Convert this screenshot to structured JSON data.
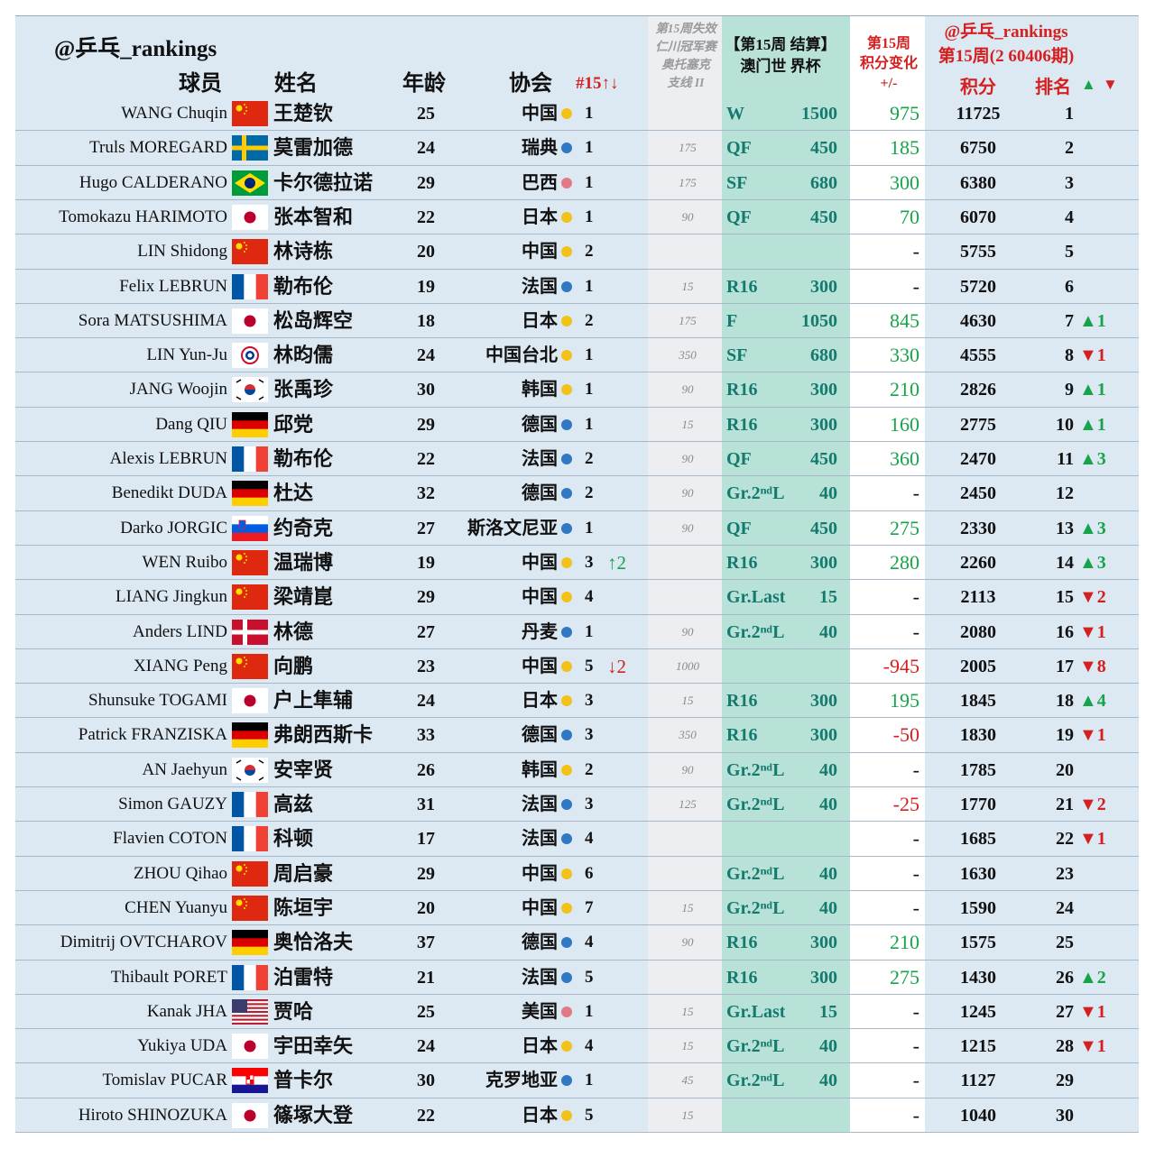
{
  "header": {
    "handle": "@乒乓_rankings",
    "col_player": "球员",
    "col_name": "姓名",
    "col_age": "年龄",
    "col_assoc": "协会",
    "col_rank15": "#15↑↓",
    "col_lost": "第15周失效\n仁川冠军赛\n奥托塞克\n支线 II",
    "col_event": "【第15周 结算】\n澳门世 界杯",
    "col_change": "第15周\n积分变化\n+/-",
    "col_period": "@乒乓_rankings\n第15周(2 60406期)",
    "col_points": "积分",
    "col_rank": "排名",
    "up": "▲",
    "down": "▼"
  },
  "table": {
    "rows": [
      {
        "name": "WANG Chuqin",
        "cn": "王楚钦",
        "age": 25,
        "assoc": "中国",
        "rank15": 1,
        "move": null,
        "lost": null,
        "stage": "W",
        "stage_pts": 1500,
        "change": 975,
        "points": 11725,
        "rank": 1,
        "rank_move": null
      },
      {
        "name": "Truls MOREGARD",
        "cn": "莫雷加德",
        "age": 24,
        "assoc": "瑞典",
        "rank15": 1,
        "move": null,
        "lost": 175,
        "stage": "QF",
        "stage_pts": 450,
        "change": 185,
        "points": 6750,
        "rank": 2,
        "rank_move": null
      },
      {
        "name": "Hugo CALDERANO",
        "cn": "卡尔德拉诺",
        "age": 29,
        "assoc": "巴西",
        "rank15": 1,
        "move": null,
        "lost": 175,
        "stage": "SF",
        "stage_pts": 680,
        "change": 300,
        "points": 6380,
        "rank": 3,
        "rank_move": null
      },
      {
        "name": "Tomokazu HARIMOTO",
        "cn": "张本智和",
        "age": 22,
        "assoc": "日本",
        "rank15": 1,
        "move": null,
        "lost": 90,
        "stage": "QF",
        "stage_pts": 450,
        "change": 70,
        "points": 6070,
        "rank": 4,
        "rank_move": null
      },
      {
        "name": "LIN Shidong",
        "cn": "林诗栋",
        "age": 20,
        "assoc": "中国",
        "rank15": 2,
        "move": null,
        "lost": null,
        "stage": null,
        "stage_pts": null,
        "change": "-",
        "points": 5755,
        "rank": 5,
        "rank_move": null
      },
      {
        "name": "Felix LEBRUN",
        "cn": "勒布伦",
        "age": 19,
        "assoc": "法国",
        "rank15": 1,
        "move": null,
        "lost": 15,
        "stage": "R16",
        "stage_pts": 300,
        "change": "-",
        "points": 5720,
        "rank": 6,
        "rank_move": null
      },
      {
        "name": "Sora MATSUSHIMA",
        "cn": "松岛辉空",
        "age": 18,
        "assoc": "日本",
        "rank15": 2,
        "move": null,
        "lost": 175,
        "stage": "F",
        "stage_pts": 1050,
        "change": 845,
        "points": 4630,
        "rank": 7,
        "rank_move": "▲1"
      },
      {
        "name": "LIN Yun-Ju",
        "cn": "林昀儒",
        "age": 24,
        "assoc": "中国台北",
        "rank15": 1,
        "move": null,
        "lost": 350,
        "stage": "SF",
        "stage_pts": 680,
        "change": 330,
        "points": 4555,
        "rank": 8,
        "rank_move": "▼1"
      },
      {
        "name": "JANG Woojin",
        "cn": "张禹珍",
        "age": 30,
        "assoc": "韩国",
        "rank15": 1,
        "move": null,
        "lost": 90,
        "stage": "R16",
        "stage_pts": 300,
        "change": 210,
        "points": 2826,
        "rank": 9,
        "rank_move": "▲1"
      },
      {
        "name": "Dang QIU",
        "cn": "邱党",
        "age": 29,
        "assoc": "德国",
        "rank15": 1,
        "move": null,
        "lost": 15,
        "stage": "R16",
        "stage_pts": 300,
        "change": 160,
        "points": 2775,
        "rank": 10,
        "rank_move": "▲1"
      },
      {
        "name": "Alexis LEBRUN",
        "cn": "勒布伦",
        "age": 22,
        "assoc": "法国",
        "rank15": 2,
        "move": null,
        "lost": 90,
        "stage": "QF",
        "stage_pts": 450,
        "change": 360,
        "points": 2470,
        "rank": 11,
        "rank_move": "▲3"
      },
      {
        "name": "Benedikt DUDA",
        "cn": "杜达",
        "age": 32,
        "assoc": "德国",
        "rank15": 2,
        "move": null,
        "lost": 90,
        "stage": "Gr.2ⁿᵈL",
        "stage_pts": 40,
        "change": "-",
        "points": 2450,
        "rank": 12,
        "rank_move": null
      },
      {
        "name": "Darko JORGIC",
        "cn": "约奇克",
        "age": 27,
        "assoc": "斯洛文尼亚",
        "rank15": 1,
        "move": null,
        "lost": 90,
        "stage": "QF",
        "stage_pts": 450,
        "change": 275,
        "points": 2330,
        "rank": 13,
        "rank_move": "▲3"
      },
      {
        "name": "WEN Ruibo",
        "cn": "温瑞博",
        "age": 19,
        "assoc": "中国",
        "rank15": 3,
        "move": "↑2",
        "lost": null,
        "stage": "R16",
        "stage_pts": 300,
        "change": 280,
        "points": 2260,
        "rank": 14,
        "rank_move": "▲3"
      },
      {
        "name": "LIANG Jingkun",
        "cn": "梁靖崑",
        "age": 29,
        "assoc": "中国",
        "rank15": 4,
        "move": null,
        "lost": null,
        "stage": "Gr.Last",
        "stage_pts": 15,
        "change": "-",
        "points": 2113,
        "rank": 15,
        "rank_move": "▼2"
      },
      {
        "name": "Anders LIND",
        "cn": "林德",
        "age": 27,
        "assoc": "丹麦",
        "rank15": 1,
        "move": null,
        "lost": 90,
        "stage": "Gr.2ⁿᵈL",
        "stage_pts": 40,
        "change": "-",
        "points": 2080,
        "rank": 16,
        "rank_move": "▼1"
      },
      {
        "name": "XIANG Peng",
        "cn": "向鹏",
        "age": 23,
        "assoc": "中国",
        "rank15": 5,
        "move": "↓2",
        "lost": 1000,
        "stage": null,
        "stage_pts": null,
        "change": -945,
        "points": 2005,
        "rank": 17,
        "rank_move": "▼8"
      },
      {
        "name": "Shunsuke TOGAMI",
        "cn": "户上隼辅",
        "age": 24,
        "assoc": "日本",
        "rank15": 3,
        "move": null,
        "lost": 15,
        "stage": "R16",
        "stage_pts": 300,
        "change": 195,
        "points": 1845,
        "rank": 18,
        "rank_move": "▲4"
      },
      {
        "name": "Patrick FRANZISKA",
        "cn": "弗朗西斯卡",
        "age": 33,
        "assoc": "德国",
        "rank15": 3,
        "move": null,
        "lost": 350,
        "stage": "R16",
        "stage_pts": 300,
        "change": -50,
        "points": 1830,
        "rank": 19,
        "rank_move": "▼1"
      },
      {
        "name": "AN Jaehyun",
        "cn": "安宰贤",
        "age": 26,
        "assoc": "韩国",
        "rank15": 2,
        "move": null,
        "lost": 90,
        "stage": "Gr.2ⁿᵈL",
        "stage_pts": 40,
        "change": "-",
        "points": 1785,
        "rank": 20,
        "rank_move": null
      },
      {
        "name": "Simon GAUZY",
        "cn": "高兹",
        "age": 31,
        "assoc": "法国",
        "rank15": 3,
        "move": null,
        "lost": 125,
        "stage": "Gr.2ⁿᵈL",
        "stage_pts": 40,
        "change": -25,
        "points": 1770,
        "rank": 21,
        "rank_move": "▼2"
      },
      {
        "name": "Flavien COTON",
        "cn": "科顿",
        "age": 17,
        "assoc": "法国",
        "rank15": 4,
        "move": null,
        "lost": null,
        "stage": null,
        "stage_pts": null,
        "change": "-",
        "points": 1685,
        "rank": 22,
        "rank_move": "▼1"
      },
      {
        "name": "ZHOU Qihao",
        "cn": "周启豪",
        "age": 29,
        "assoc": "中国",
        "rank15": 6,
        "move": null,
        "lost": null,
        "stage": "Gr.2ⁿᵈL",
        "stage_pts": 40,
        "change": "-",
        "points": 1630,
        "rank": 23,
        "rank_move": null
      },
      {
        "name": "CHEN Yuanyu",
        "cn": "陈垣宇",
        "age": 20,
        "assoc": "中国",
        "rank15": 7,
        "move": null,
        "lost": 15,
        "stage": "Gr.2ⁿᵈL",
        "stage_pts": 40,
        "change": "-",
        "points": 1590,
        "rank": 24,
        "rank_move": null
      },
      {
        "name": "Dimitrij OVTCHAROV",
        "cn": "奥恰洛夫",
        "age": 37,
        "assoc": "德国",
        "rank15": 4,
        "move": null,
        "lost": 90,
        "stage": "R16",
        "stage_pts": 300,
        "change": 210,
        "points": 1575,
        "rank": 25,
        "rank_move": null
      },
      {
        "name": "Thibault PORET",
        "cn": "泊雷特",
        "age": 21,
        "assoc": "法国",
        "rank15": 5,
        "move": null,
        "lost": null,
        "stage": "R16",
        "stage_pts": 300,
        "change": 275,
        "points": 1430,
        "rank": 26,
        "rank_move": "▲2"
      },
      {
        "name": "Kanak JHA",
        "cn": "贾哈",
        "age": 25,
        "assoc": "美国",
        "rank15": 1,
        "move": null,
        "lost": 15,
        "stage": "Gr.Last",
        "stage_pts": 15,
        "change": "-",
        "points": 1245,
        "rank": 27,
        "rank_move": "▼1"
      },
      {
        "name": "Yukiya UDA",
        "cn": "宇田幸矢",
        "age": 24,
        "assoc": "日本",
        "rank15": 4,
        "move": null,
        "lost": 15,
        "stage": "Gr.2ⁿᵈL",
        "stage_pts": 40,
        "change": "-",
        "points": 1215,
        "rank": 28,
        "rank_move": "▼1"
      },
      {
        "name": "Tomislav PUCAR",
        "cn": "普卡尔",
        "age": 30,
        "assoc": "克罗地亚",
        "rank15": 1,
        "move": null,
        "lost": 45,
        "stage": "Gr.2ⁿᵈL",
        "stage_pts": 40,
        "change": "-",
        "points": 1127,
        "rank": 29,
        "rank_move": null
      },
      {
        "name": "Hiroto SHINOZUKA",
        "cn": "篠塚大登",
        "age": 22,
        "assoc": "日本",
        "rank15": 5,
        "move": null,
        "lost": 15,
        "stage": null,
        "stage_pts": null,
        "change": "-",
        "points": 1040,
        "rank": 30,
        "rank_move": null
      }
    ]
  }
}
